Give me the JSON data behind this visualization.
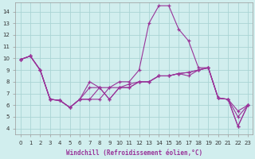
{
  "xlabel": "Windchill (Refroidissement éolien,°C)",
  "background_color": "#d1eeee",
  "grid_color": "#aad4d4",
  "line_color": "#993399",
  "xlim": [
    -0.5,
    23.5
  ],
  "ylim": [
    3.5,
    14.8
  ],
  "yticks": [
    4,
    5,
    6,
    7,
    8,
    9,
    10,
    11,
    12,
    13,
    14
  ],
  "xticks": [
    0,
    1,
    2,
    3,
    4,
    5,
    6,
    7,
    8,
    9,
    10,
    11,
    12,
    13,
    14,
    15,
    16,
    17,
    18,
    19,
    20,
    21,
    22,
    23
  ],
  "lines": [
    [
      9.9,
      10.2,
      null,
      6.5,
      6.4,
      5.8,
      5.7,
      null,
      7.5,
      null,
      null,
      null,
      null,
      13.0,
      14.5,
      14.5,
      12.5,
      11.5,
      null,
      9.2,
      null,
      null,
      4.2,
      6.0
    ],
    [
      9.9,
      10.2,
      null,
      null,
      null,
      null,
      null,
      8.0,
      null,
      null,
      null,
      null,
      null,
      null,
      null,
      null,
      null,
      null,
      null,
      null,
      null,
      null,
      null,
      null
    ],
    [
      9.9,
      10.2,
      null,
      6.5,
      6.5,
      6.0,
      6.5,
      6.5,
      7.5,
      6.5,
      7.5,
      7.5,
      8.0,
      8.0,
      8.5,
      8.5,
      8.7,
      8.8,
      8.8,
      8.9,
      6.5,
      6.5,
      5.5,
      6.0
    ],
    [
      9.9,
      10.2,
      null,
      6.5,
      6.5,
      6.0,
      6.5,
      7.5,
      7.5,
      6.5,
      7.5,
      8.0,
      8.0,
      8.0,
      8.5,
      8.5,
      8.7,
      8.8,
      8.8,
      8.9,
      6.5,
      6.5,
      4.2,
      6.0
    ],
    [
      9.9,
      10.2,
      null,
      6.5,
      6.5,
      6.0,
      6.5,
      6.5,
      6.5,
      7.5,
      7.5,
      7.5,
      8.0,
      8.0,
      8.5,
      8.5,
      8.7,
      8.8,
      8.8,
      8.9,
      6.5,
      6.5,
      5.0,
      6.0
    ]
  ],
  "lines2": [
    {
      "x": [
        0,
        1,
        2,
        3,
        4,
        5,
        6,
        7,
        8,
        9,
        10,
        11,
        12,
        13,
        14,
        15,
        16,
        17,
        18,
        19,
        20,
        21,
        22,
        23
      ],
      "y": [
        9.9,
        10.2,
        9.0,
        6.5,
        6.4,
        5.8,
        6.5,
        7.5,
        7.5,
        7.5,
        8.0,
        8.0,
        9.0,
        13.0,
        14.5,
        14.5,
        12.5,
        11.5,
        9.2,
        9.2,
        6.6,
        6.5,
        4.2,
        6.0
      ]
    },
    {
      "x": [
        0,
        1,
        2,
        3,
        4,
        5,
        6,
        7,
        8,
        9,
        10,
        11,
        12,
        13,
        14,
        15,
        16,
        17,
        18,
        19,
        20,
        21,
        22,
        23
      ],
      "y": [
        9.9,
        10.2,
        9.0,
        6.5,
        6.4,
        5.8,
        6.5,
        8.0,
        7.5,
        6.5,
        7.5,
        7.5,
        8.0,
        8.0,
        8.5,
        8.5,
        8.7,
        8.5,
        9.0,
        9.2,
        6.6,
        6.5,
        5.5,
        6.0
      ]
    },
    {
      "x": [
        0,
        1,
        2,
        3,
        4,
        5,
        6,
        7,
        8,
        9,
        10,
        11,
        12,
        13,
        14,
        15,
        16,
        17,
        18,
        19,
        20,
        21,
        22,
        23
      ],
      "y": [
        9.9,
        10.2,
        9.0,
        6.5,
        6.4,
        5.8,
        6.5,
        6.5,
        7.5,
        6.5,
        7.5,
        7.8,
        8.0,
        8.0,
        8.5,
        8.5,
        8.7,
        8.8,
        9.0,
        9.2,
        6.6,
        6.5,
        4.2,
        6.0
      ]
    },
    {
      "x": [
        0,
        1,
        2,
        3,
        4,
        5,
        6,
        7,
        8,
        9,
        10,
        11,
        12,
        13,
        14,
        15,
        16,
        17,
        18,
        19,
        20,
        21,
        22,
        23
      ],
      "y": [
        9.9,
        10.2,
        9.0,
        6.5,
        6.4,
        5.8,
        6.5,
        6.5,
        6.5,
        7.5,
        7.5,
        7.5,
        8.0,
        8.0,
        8.5,
        8.5,
        8.7,
        8.8,
        9.0,
        9.2,
        6.6,
        6.5,
        5.0,
        6.0
      ]
    }
  ]
}
